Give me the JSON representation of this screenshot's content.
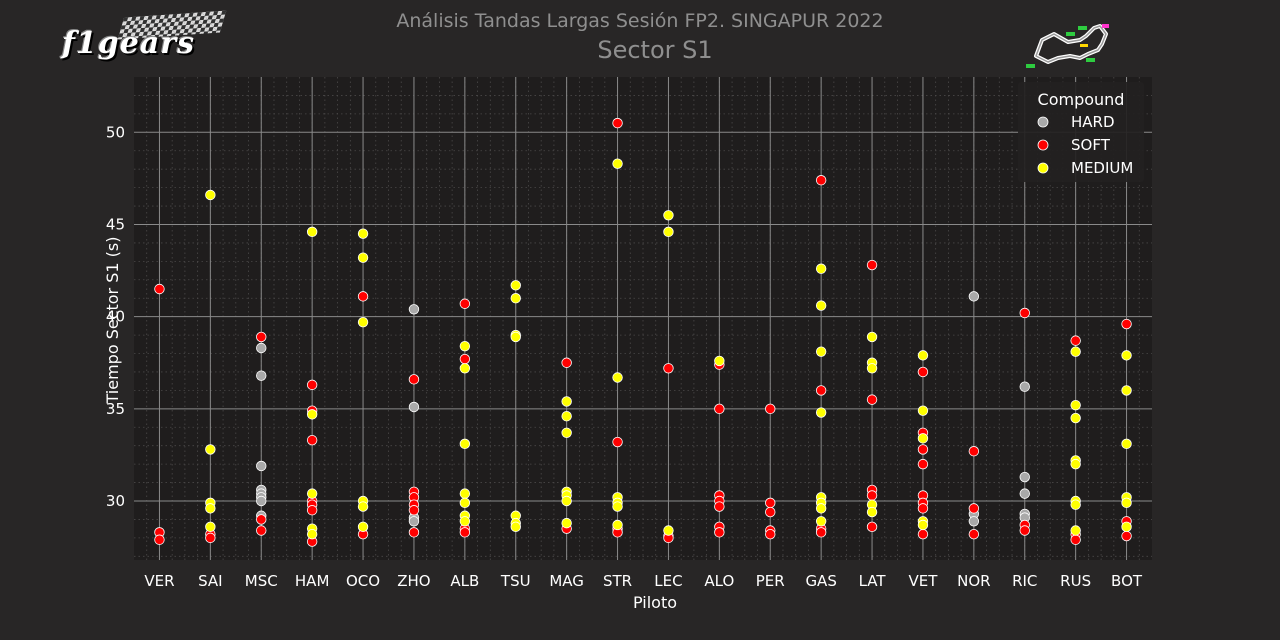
{
  "logo": {
    "text": "f1gears"
  },
  "colors": {
    "background": "#282626",
    "plot_background": "#1f1d1d",
    "grid_major": "#8a8a8a",
    "grid_minor": "#4a4848",
    "text": "#ffffff",
    "title": "#8f8f8f",
    "legend_background": "#232121"
  },
  "chart_data": {
    "type": "scatter",
    "title": "Análisis Tandas Largas Sesión FP2. SINGAPUR 2022",
    "subtitle": "Sector S1",
    "xlabel": "Piloto",
    "ylabel": "Tiempo Sector S1 (s)",
    "ylim": [
      26.8,
      53.0
    ],
    "yticks": [
      30,
      35,
      40,
      45,
      50
    ],
    "grid": true,
    "legend": {
      "title": "Compound",
      "placement": "top-right",
      "entries": [
        {
          "name": "HARD",
          "color": "#a9a9a9"
        },
        {
          "name": "SOFT",
          "color": "#ff0000"
        },
        {
          "name": "MEDIUM",
          "color": "#ffff00"
        }
      ]
    },
    "categories": [
      "VER",
      "SAI",
      "MSC",
      "HAM",
      "OCO",
      "ZHO",
      "ALB",
      "TSU",
      "MAG",
      "STR",
      "LEC",
      "ALO",
      "PER",
      "GAS",
      "LAT",
      "VET",
      "NOR",
      "RIC",
      "RUS",
      "BOT"
    ],
    "series": [
      {
        "name": "HARD",
        "color": "#a9a9a9",
        "points": [
          [
            "MSC",
            38.3
          ],
          [
            "MSC",
            36.8
          ],
          [
            "MSC",
            31.9
          ],
          [
            "MSC",
            30.6
          ],
          [
            "MSC",
            30.4
          ],
          [
            "MSC",
            30.2
          ],
          [
            "MSC",
            30.0
          ],
          [
            "MSC",
            29.2
          ],
          [
            "ZHO",
            40.4
          ],
          [
            "ZHO",
            35.1
          ],
          [
            "ZHO",
            29.1
          ],
          [
            "ZHO",
            28.9
          ],
          [
            "NOR",
            41.1
          ],
          [
            "NOR",
            29.3
          ],
          [
            "NOR",
            28.9
          ],
          [
            "RIC",
            36.2
          ],
          [
            "RIC",
            31.3
          ],
          [
            "RIC",
            30.4
          ],
          [
            "RIC",
            29.3
          ],
          [
            "RIC",
            29.1
          ]
        ]
      },
      {
        "name": "SOFT",
        "color": "#ff0000",
        "points": [
          [
            "VER",
            41.5
          ],
          [
            "VER",
            28.3
          ],
          [
            "VER",
            27.9
          ],
          [
            "SAI",
            28.2
          ],
          [
            "SAI",
            28.0
          ],
          [
            "MSC",
            38.9
          ],
          [
            "MSC",
            29.0
          ],
          [
            "MSC",
            28.4
          ],
          [
            "HAM",
            36.3
          ],
          [
            "HAM",
            34.9
          ],
          [
            "HAM",
            33.3
          ],
          [
            "HAM",
            30.0
          ],
          [
            "HAM",
            29.8
          ],
          [
            "HAM",
            29.5
          ],
          [
            "HAM",
            27.8
          ],
          [
            "OCO",
            41.1
          ],
          [
            "OCO",
            28.2
          ],
          [
            "ZHO",
            36.6
          ],
          [
            "ZHO",
            30.5
          ],
          [
            "ZHO",
            30.2
          ],
          [
            "ZHO",
            29.8
          ],
          [
            "ZHO",
            29.5
          ],
          [
            "ZHO",
            28.3
          ],
          [
            "ALB",
            40.7
          ],
          [
            "ALB",
            37.7
          ],
          [
            "ALB",
            28.5
          ],
          [
            "ALB",
            28.3
          ],
          [
            "MAG",
            37.5
          ],
          [
            "MAG",
            28.5
          ],
          [
            "STR",
            50.5
          ],
          [
            "STR",
            33.2
          ],
          [
            "STR",
            28.5
          ],
          [
            "STR",
            28.3
          ],
          [
            "LEC",
            37.2
          ],
          [
            "LEC",
            28.1
          ],
          [
            "LEC",
            28.0
          ],
          [
            "ALO",
            37.4
          ],
          [
            "ALO",
            35.0
          ],
          [
            "ALO",
            30.3
          ],
          [
            "ALO",
            30.0
          ],
          [
            "ALO",
            29.7
          ],
          [
            "ALO",
            28.6
          ],
          [
            "ALO",
            28.3
          ],
          [
            "PER",
            35.0
          ],
          [
            "PER",
            29.9
          ],
          [
            "PER",
            29.4
          ],
          [
            "PER",
            28.4
          ],
          [
            "PER",
            28.2
          ],
          [
            "GAS",
            47.4
          ],
          [
            "GAS",
            36.0
          ],
          [
            "GAS",
            28.5
          ],
          [
            "GAS",
            28.3
          ],
          [
            "LAT",
            42.8
          ],
          [
            "LAT",
            35.5
          ],
          [
            "LAT",
            30.6
          ],
          [
            "LAT",
            30.3
          ],
          [
            "LAT",
            28.6
          ],
          [
            "VET",
            37.0
          ],
          [
            "VET",
            33.7
          ],
          [
            "VET",
            32.8
          ],
          [
            "VET",
            32.0
          ],
          [
            "VET",
            30.3
          ],
          [
            "VET",
            29.9
          ],
          [
            "VET",
            29.6
          ],
          [
            "VET",
            28.2
          ],
          [
            "NOR",
            32.7
          ],
          [
            "NOR",
            29.6
          ],
          [
            "NOR",
            28.2
          ],
          [
            "RIC",
            40.2
          ],
          [
            "RIC",
            28.7
          ],
          [
            "RIC",
            28.4
          ],
          [
            "RUS",
            38.7
          ],
          [
            "RUS",
            28.2
          ],
          [
            "RUS",
            27.9
          ],
          [
            "BOT",
            39.6
          ],
          [
            "BOT",
            28.9
          ],
          [
            "BOT",
            28.1
          ]
        ]
      },
      {
        "name": "MEDIUM",
        "color": "#ffff00",
        "points": [
          [
            "SAI",
            46.6
          ],
          [
            "SAI",
            32.8
          ],
          [
            "SAI",
            29.9
          ],
          [
            "SAI",
            29.6
          ],
          [
            "SAI",
            28.6
          ],
          [
            "HAM",
            44.6
          ],
          [
            "HAM",
            34.7
          ],
          [
            "HAM",
            30.4
          ],
          [
            "HAM",
            28.5
          ],
          [
            "HAM",
            28.2
          ],
          [
            "OCO",
            44.5
          ],
          [
            "OCO",
            43.2
          ],
          [
            "OCO",
            39.7
          ],
          [
            "OCO",
            30.0
          ],
          [
            "OCO",
            29.7
          ],
          [
            "OCO",
            28.6
          ],
          [
            "ALB",
            38.4
          ],
          [
            "ALB",
            37.2
          ],
          [
            "ALB",
            33.1
          ],
          [
            "ALB",
            30.4
          ],
          [
            "ALB",
            29.9
          ],
          [
            "ALB",
            29.2
          ],
          [
            "ALB",
            28.9
          ],
          [
            "TSU",
            41.7
          ],
          [
            "TSU",
            41.0
          ],
          [
            "TSU",
            39.0
          ],
          [
            "TSU",
            38.9
          ],
          [
            "TSU",
            29.2
          ],
          [
            "TSU",
            28.8
          ],
          [
            "TSU",
            28.6
          ],
          [
            "MAG",
            35.4
          ],
          [
            "MAG",
            34.6
          ],
          [
            "MAG",
            33.7
          ],
          [
            "MAG",
            30.5
          ],
          [
            "MAG",
            30.3
          ],
          [
            "MAG",
            30.0
          ],
          [
            "MAG",
            28.8
          ],
          [
            "STR",
            48.3
          ],
          [
            "STR",
            36.7
          ],
          [
            "STR",
            30.2
          ],
          [
            "STR",
            29.9
          ],
          [
            "STR",
            29.7
          ],
          [
            "STR",
            28.7
          ],
          [
            "LEC",
            45.5
          ],
          [
            "LEC",
            44.6
          ],
          [
            "LEC",
            28.4
          ],
          [
            "ALO",
            37.6
          ],
          [
            "GAS",
            42.6
          ],
          [
            "GAS",
            40.6
          ],
          [
            "GAS",
            38.1
          ],
          [
            "GAS",
            34.8
          ],
          [
            "GAS",
            30.2
          ],
          [
            "GAS",
            29.9
          ],
          [
            "GAS",
            29.6
          ],
          [
            "GAS",
            28.9
          ],
          [
            "LAT",
            38.9
          ],
          [
            "LAT",
            37.5
          ],
          [
            "LAT",
            37.2
          ],
          [
            "LAT",
            29.8
          ],
          [
            "LAT",
            29.4
          ],
          [
            "VET",
            37.9
          ],
          [
            "VET",
            34.9
          ],
          [
            "VET",
            33.4
          ],
          [
            "VET",
            28.9
          ],
          [
            "VET",
            28.7
          ],
          [
            "RUS",
            38.1
          ],
          [
            "RUS",
            35.2
          ],
          [
            "RUS",
            34.5
          ],
          [
            "RUS",
            32.2
          ],
          [
            "RUS",
            32.0
          ],
          [
            "RUS",
            30.0
          ],
          [
            "RUS",
            29.8
          ],
          [
            "RUS",
            28.4
          ],
          [
            "BOT",
            37.9
          ],
          [
            "BOT",
            36.0
          ],
          [
            "BOT",
            33.1
          ],
          [
            "BOT",
            30.2
          ],
          [
            "BOT",
            29.9
          ],
          [
            "BOT",
            28.6
          ]
        ]
      }
    ]
  }
}
